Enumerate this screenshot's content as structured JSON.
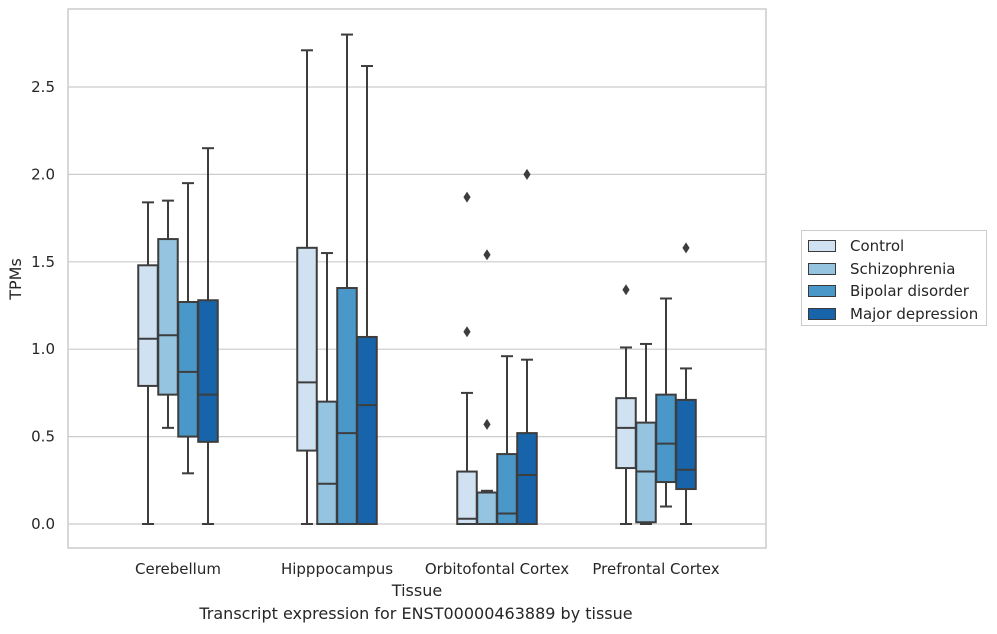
{
  "chart_data": {
    "type": "boxplot",
    "title": "",
    "caption": "Transcript expression for ENST00000463889 by tissue",
    "xlabel": "Tissue",
    "ylabel": "TPMs",
    "ylim": [
      -0.13,
      2.95
    ],
    "yticks": [
      0.0,
      0.5,
      1.0,
      1.5,
      2.0,
      2.5
    ],
    "ytick_labels": [
      "0.0",
      "0.5",
      "1.0",
      "1.5",
      "2.0",
      "2.5"
    ],
    "categories": [
      "Cerebellum",
      "Hipppocampus",
      "Orbitofontal Cortex",
      "Prefrontal Cortex"
    ],
    "grid": "horizontal",
    "legend_position": "right",
    "series": [
      {
        "name": "Control",
        "color": "#d0e1f2",
        "boxes": [
          {
            "whislo": 0.0,
            "q1": 0.79,
            "med": 1.06,
            "q3": 1.48,
            "whishi": 1.84,
            "fliers": []
          },
          {
            "whislo": 0.0,
            "q1": 0.42,
            "med": 0.81,
            "q3": 1.58,
            "whishi": 2.71,
            "fliers": []
          },
          {
            "whislo": 0.0,
            "q1": 0.0,
            "med": 0.03,
            "q3": 0.3,
            "whishi": 0.75,
            "fliers": [
              1.1,
              1.87
            ]
          },
          {
            "whislo": 0.0,
            "q1": 0.32,
            "med": 0.55,
            "q3": 0.72,
            "whishi": 1.01,
            "fliers": [
              1.34
            ]
          }
        ]
      },
      {
        "name": "Schizophrenia",
        "color": "#94c4df",
        "boxes": [
          {
            "whislo": 0.55,
            "q1": 0.74,
            "med": 1.08,
            "q3": 1.63,
            "whishi": 1.85,
            "fliers": []
          },
          {
            "whislo": 0.0,
            "q1": 0.0,
            "med": 0.23,
            "q3": 0.7,
            "whishi": 1.55,
            "fliers": []
          },
          {
            "whislo": 0.0,
            "q1": 0.0,
            "med": 0.0,
            "q3": 0.18,
            "whishi": 0.19,
            "fliers": [
              0.57,
              1.54
            ]
          },
          {
            "whislo": 0.0,
            "q1": 0.01,
            "med": 0.3,
            "q3": 0.58,
            "whishi": 1.03,
            "fliers": []
          }
        ]
      },
      {
        "name": "Bipolar disorder",
        "color": "#4a98c9",
        "boxes": [
          {
            "whislo": 0.29,
            "q1": 0.5,
            "med": 0.87,
            "q3": 1.27,
            "whishi": 1.95,
            "fliers": []
          },
          {
            "whislo": 0.0,
            "q1": 0.0,
            "med": 0.52,
            "q3": 1.35,
            "whishi": 2.8,
            "fliers": []
          },
          {
            "whislo": 0.0,
            "q1": 0.0,
            "med": 0.06,
            "q3": 0.4,
            "whishi": 0.96,
            "fliers": []
          },
          {
            "whislo": 0.1,
            "q1": 0.24,
            "med": 0.46,
            "q3": 0.74,
            "whishi": 1.29,
            "fliers": []
          }
        ]
      },
      {
        "name": "Major depression",
        "color": "#1764ab",
        "boxes": [
          {
            "whislo": 0.0,
            "q1": 0.47,
            "med": 0.74,
            "q3": 1.28,
            "whishi": 2.15,
            "fliers": []
          },
          {
            "whislo": 0.0,
            "q1": 0.0,
            "med": 0.68,
            "q3": 1.07,
            "whishi": 2.62,
            "fliers": []
          },
          {
            "whislo": 0.0,
            "q1": 0.0,
            "med": 0.28,
            "q3": 0.52,
            "whishi": 0.94,
            "fliers": [
              2.0
            ]
          },
          {
            "whislo": 0.0,
            "q1": 0.2,
            "med": 0.31,
            "q3": 0.71,
            "whishi": 0.89,
            "fliers": [
              1.58
            ]
          }
        ]
      }
    ]
  }
}
